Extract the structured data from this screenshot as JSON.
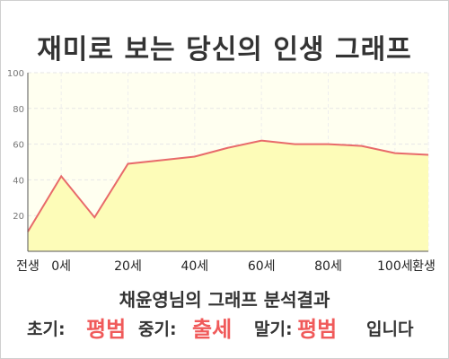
{
  "title": "재미로 보는 당신의 인생 그래프",
  "result": {
    "heading": "채윤영님의 그래프 분석결과",
    "early_label": "초기:",
    "early_value": "평범",
    "middle_label": "중기:",
    "middle_value": "출세",
    "late_label": "말기:",
    "late_value": "평범",
    "suffix": "입니다"
  },
  "colors": {
    "line": "#e86a6a",
    "fill": "#fdfcb8",
    "plot_bg": "#fffff0",
    "accent_text": "#f05a5a"
  },
  "chart_data": {
    "type": "area",
    "x": [
      0,
      10,
      20,
      30,
      40,
      50,
      60,
      70,
      80,
      90,
      100,
      110,
      120
    ],
    "values": [
      11,
      42,
      19,
      49,
      51,
      53,
      58,
      62,
      60,
      60,
      59,
      55,
      54
    ],
    "x_tick_labels": [
      "전생",
      "0세",
      "20세",
      "40세",
      "60세",
      "80세",
      "100세",
      "환생"
    ],
    "x_tick_positions": [
      0,
      10,
      30,
      50,
      70,
      90,
      110,
      120
    ],
    "y_ticks": [
      20,
      40,
      60,
      80,
      100
    ],
    "ylim": [
      0,
      100
    ],
    "xlim": [
      0,
      120
    ],
    "grid": true
  }
}
